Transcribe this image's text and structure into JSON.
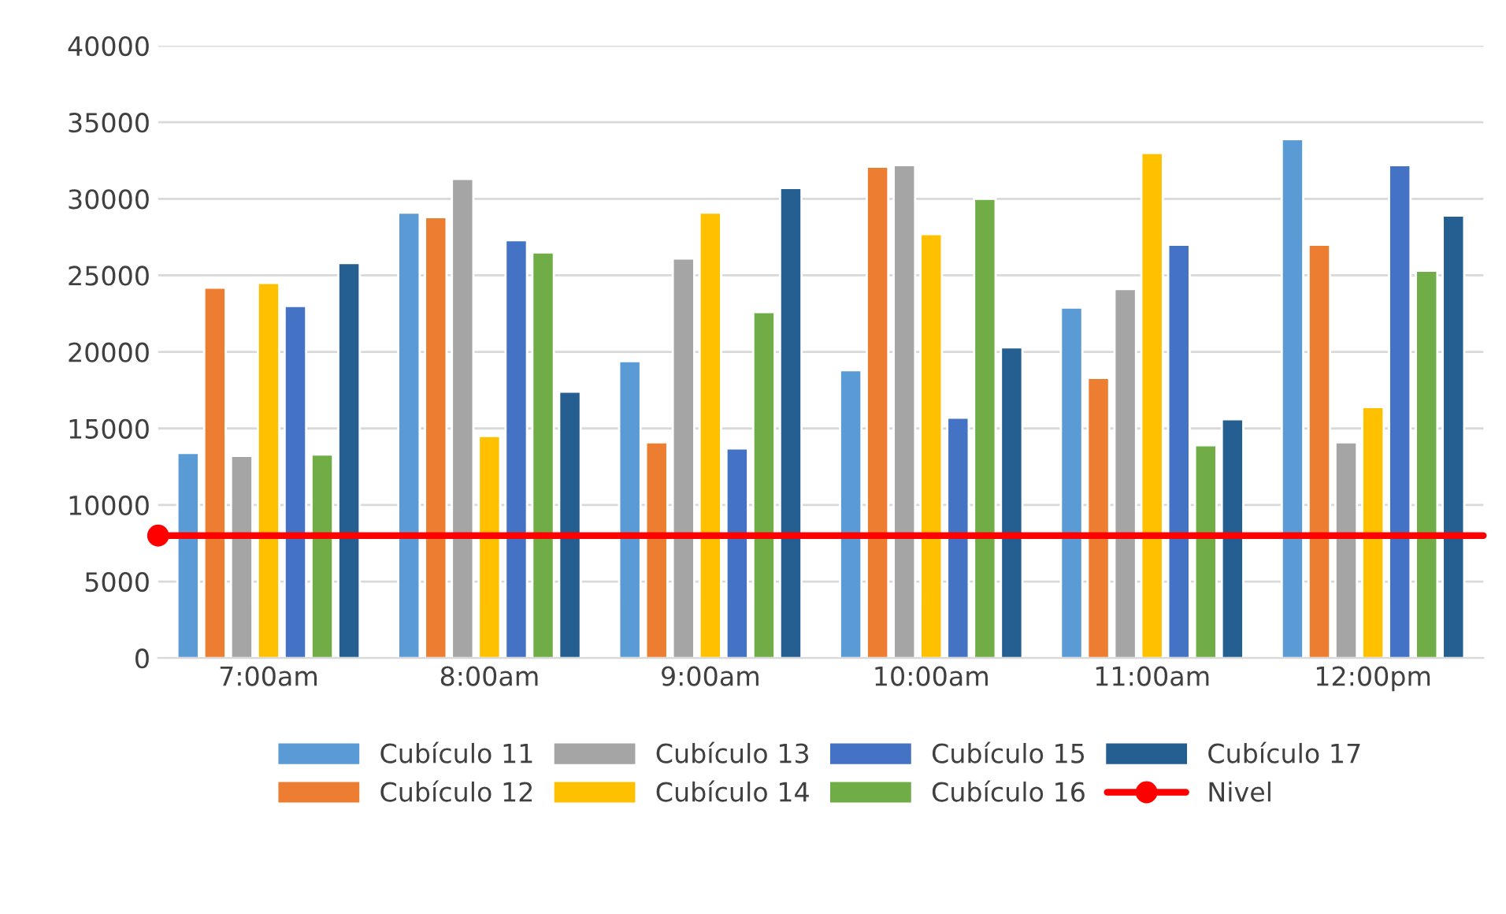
{
  "chart_data": {
    "type": "bar",
    "categories": [
      "7:00am",
      "8:00am",
      "9:00am",
      "10:00am",
      "11:00am",
      "12:00pm"
    ],
    "series": [
      {
        "name": "Cubículo 11",
        "color": "#5b9bd5",
        "values": [
          13400,
          29100,
          19400,
          18800,
          22900,
          33900
        ]
      },
      {
        "name": "Cubículo 12",
        "color": "#ed7d31",
        "values": [
          24200,
          28800,
          14100,
          32100,
          18300,
          27000
        ]
      },
      {
        "name": "Cubículo 13",
        "color": "#a5a5a5",
        "values": [
          13200,
          31300,
          26100,
          32200,
          24100,
          14100
        ]
      },
      {
        "name": "Cubículo 14",
        "color": "#ffc000",
        "values": [
          24500,
          14500,
          29100,
          27700,
          33000,
          16400
        ]
      },
      {
        "name": "Cubículo 15",
        "color": "#4472c4",
        "values": [
          23000,
          27300,
          13700,
          15700,
          27000,
          32200
        ]
      },
      {
        "name": "Cubículo 16",
        "color": "#70ad47",
        "values": [
          13300,
          26500,
          22600,
          30000,
          13900,
          25300
        ]
      },
      {
        "name": "Cubículo 17",
        "color": "#255e91",
        "values": [
          25800,
          17400,
          30700,
          20300,
          15600,
          28900
        ]
      }
    ],
    "ref_lines": [
      {
        "axis": "y",
        "value": 8000,
        "label": "Nivel",
        "color": "#ff0000"
      }
    ],
    "ylim": [
      0,
      40000
    ],
    "yticks": [
      0,
      5000,
      10000,
      15000,
      20000,
      25000,
      30000,
      35000,
      40000
    ],
    "grid": "y",
    "legend": "bottom"
  }
}
